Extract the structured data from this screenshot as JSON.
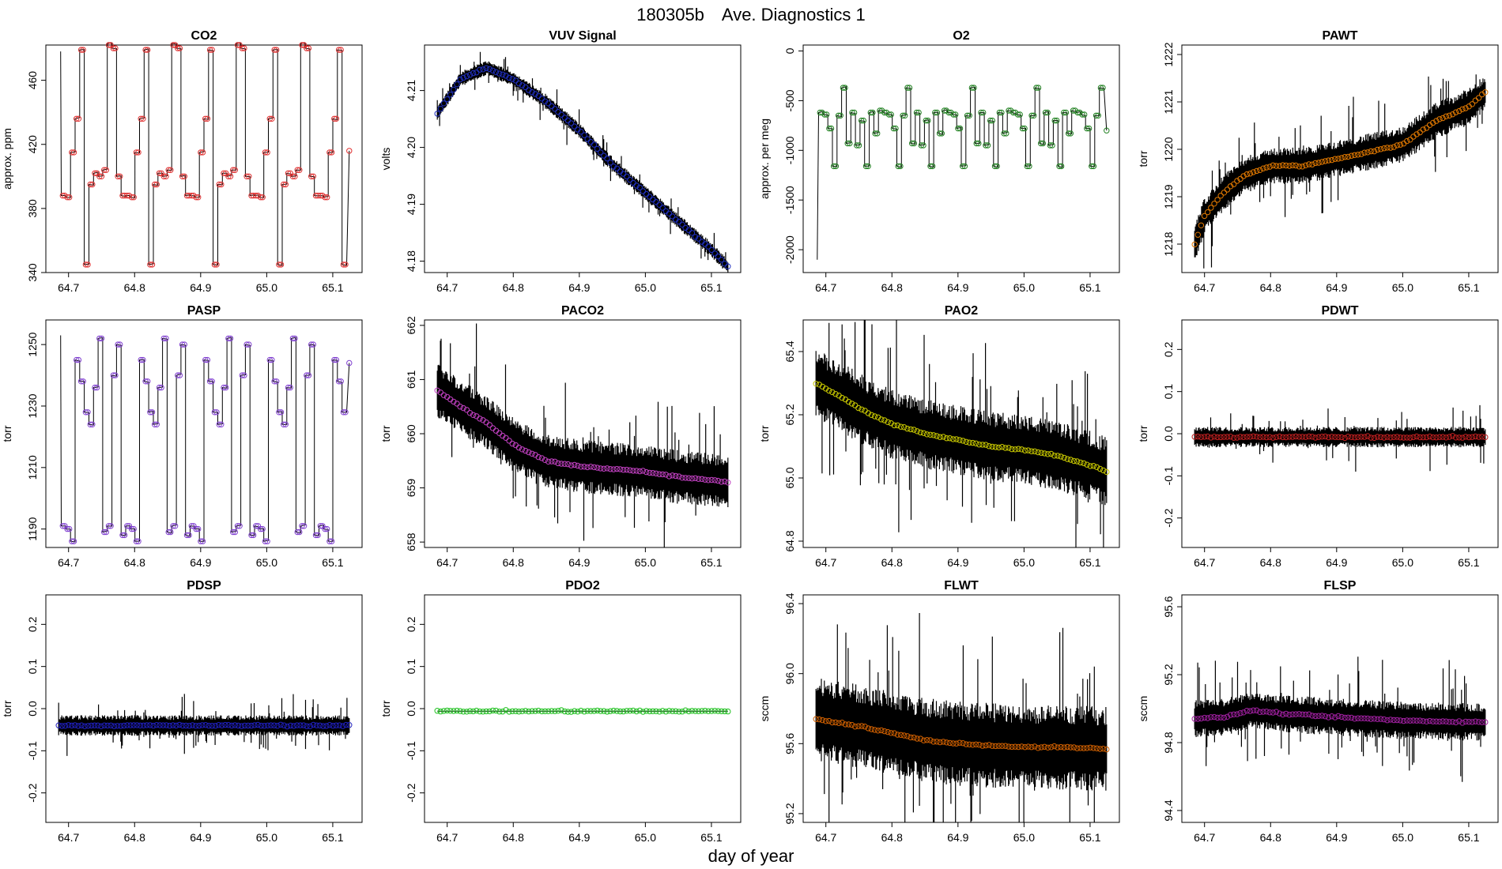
{
  "figure": {
    "title_id": "180305b",
    "title_text": "Ave. Diagnostics 1",
    "xlabel": "day of year",
    "x_range": [
      64.68,
      65.13
    ],
    "x_ticks": [
      "64.7",
      "64.8",
      "64.9",
      "65.0",
      "65.1"
    ]
  },
  "chart_data": [
    {
      "type": "line",
      "title": "CO2",
      "ylabel": "approx. ppm",
      "ylim": [
        340,
        482
      ],
      "y_ticks": [
        {
          "v": 340,
          "label": "340"
        },
        {
          "v": 380,
          "label": "380"
        },
        {
          "v": 420,
          "label": "420"
        },
        {
          "v": 460,
          "label": "460"
        }
      ],
      "color": "#e03030",
      "kind": "steps",
      "pattern": [
        388,
        387,
        415,
        436,
        479,
        345,
        395,
        402,
        400,
        404,
        483,
        480,
        400,
        388
      ],
      "start": {
        "x": 64.688,
        "y": 478
      },
      "end": {
        "x": 65.125,
        "y": 416
      }
    },
    {
      "type": "line",
      "title": "VUV Signal",
      "ylabel": "volts",
      "ylim": [
        4.178,
        4.218
      ],
      "y_ticks": [
        {
          "v": 4.18,
          "label": "4.18"
        },
        {
          "v": 4.19,
          "label": "4.19"
        },
        {
          "v": 4.2,
          "label": "4.20"
        },
        {
          "v": 4.21,
          "label": "4.21"
        }
      ],
      "color": "#2030c0",
      "kind": "curve",
      "curve": [
        [
          64.685,
          4.206
        ],
        [
          64.72,
          4.212
        ],
        [
          64.76,
          4.214
        ],
        [
          64.8,
          4.212
        ],
        [
          64.85,
          4.208
        ],
        [
          64.9,
          4.203
        ],
        [
          64.95,
          4.197
        ],
        [
          65.0,
          4.192
        ],
        [
          65.05,
          4.187
        ],
        [
          65.1,
          4.182
        ],
        [
          65.125,
          4.179
        ]
      ],
      "noise": 0.0012
    },
    {
      "type": "line",
      "title": "O2",
      "ylabel": "approx. per meg",
      "ylim": [
        -2230,
        60
      ],
      "y_ticks": [
        {
          "v": 0,
          "label": "0"
        },
        {
          "v": -500,
          "label": "-500"
        },
        {
          "v": -1000,
          "label": "-1000"
        },
        {
          "v": -1500,
          "label": "-1500"
        },
        {
          "v": -2000,
          "label": "-2000"
        }
      ],
      "color": "#208020",
      "kind": "steps",
      "pattern": [
        -620,
        -640,
        -780,
        -1160,
        -650,
        -370,
        -930,
        -620,
        -950,
        -700,
        -1160,
        -620,
        -830,
        -600
      ],
      "start": {
        "x": 64.687,
        "y": -2100
      },
      "end": {
        "x": 65.125,
        "y": -800
      }
    },
    {
      "type": "line",
      "title": "PAWT",
      "ylabel": "torr",
      "ylim": [
        1217.4,
        1222.2
      ],
      "y_ticks": [
        {
          "v": 1218,
          "label": "1218"
        },
        {
          "v": 1219,
          "label": "1219"
        },
        {
          "v": 1220,
          "label": "1220"
        },
        {
          "v": 1221,
          "label": "1221"
        },
        {
          "v": 1222,
          "label": "1222"
        }
      ],
      "color": "#e07800",
      "kind": "curve",
      "curve": [
        [
          64.685,
          1218.0
        ],
        [
          64.7,
          1218.6
        ],
        [
          64.73,
          1219.1
        ],
        [
          64.76,
          1219.45
        ],
        [
          64.8,
          1219.65
        ],
        [
          64.85,
          1219.65
        ],
        [
          64.9,
          1219.8
        ],
        [
          64.95,
          1219.95
        ],
        [
          65.0,
          1220.1
        ],
        [
          65.05,
          1220.6
        ],
        [
          65.1,
          1220.9
        ],
        [
          65.125,
          1221.2
        ]
      ],
      "noise": 0.35
    },
    {
      "type": "line",
      "title": "PASP",
      "ylabel": "torr",
      "ylim": [
        1184,
        1258
      ],
      "y_ticks": [
        {
          "v": 1190,
          "label": "1190"
        },
        {
          "v": 1210,
          "label": "1210"
        },
        {
          "v": 1230,
          "label": "1230"
        },
        {
          "v": 1250,
          "label": "1250"
        }
      ],
      "color": "#8040d0",
      "kind": "steps",
      "pattern": [
        1191,
        1190,
        1186,
        1245,
        1238,
        1228,
        1224,
        1236,
        1252,
        1189,
        1191,
        1240,
        1250,
        1188
      ],
      "start": {
        "x": 64.688,
        "y": 1253
      },
      "end": {
        "x": 65.125,
        "y": 1244
      }
    },
    {
      "type": "line",
      "title": "PACO2",
      "ylabel": "torr",
      "ylim": [
        657.9,
        662.1
      ],
      "y_ticks": [
        {
          "v": 658,
          "label": "658"
        },
        {
          "v": 659,
          "label": "659"
        },
        {
          "v": 660,
          "label": "660"
        },
        {
          "v": 661,
          "label": "661"
        },
        {
          "v": 662,
          "label": "662"
        }
      ],
      "color": "#c040c0",
      "kind": "curve",
      "curve": [
        [
          64.685,
          660.8
        ],
        [
          64.72,
          660.5
        ],
        [
          64.76,
          660.2
        ],
        [
          64.8,
          659.8
        ],
        [
          64.85,
          659.5
        ],
        [
          64.9,
          659.4
        ],
        [
          64.95,
          659.35
        ],
        [
          65.0,
          659.3
        ],
        [
          65.05,
          659.2
        ],
        [
          65.1,
          659.15
        ],
        [
          65.125,
          659.1
        ]
      ],
      "noise": 0.45
    },
    {
      "type": "line",
      "title": "PAO2",
      "ylabel": "torr",
      "ylim": [
        64.78,
        65.5
      ],
      "y_ticks": [
        {
          "v": 64.8,
          "label": "64.8"
        },
        {
          "v": 65.0,
          "label": "65.0"
        },
        {
          "v": 65.2,
          "label": "65.2"
        },
        {
          "v": 65.4,
          "label": "65.4"
        }
      ],
      "color": "#c8c800",
      "kind": "curve",
      "curve": [
        [
          64.685,
          65.3
        ],
        [
          64.72,
          65.26
        ],
        [
          64.76,
          65.21
        ],
        [
          64.8,
          65.17
        ],
        [
          64.85,
          65.14
        ],
        [
          64.9,
          65.12
        ],
        [
          64.95,
          65.1
        ],
        [
          65.0,
          65.09
        ],
        [
          65.05,
          65.07
        ],
        [
          65.1,
          65.04
        ],
        [
          65.125,
          65.02
        ]
      ],
      "noise": 0.1
    },
    {
      "type": "line",
      "title": "PDWT",
      "ylabel": "torr",
      "ylim": [
        -0.27,
        0.27
      ],
      "y_ticks": [
        {
          "v": -0.2,
          "label": "-0.2"
        },
        {
          "v": -0.1,
          "label": "-0.1"
        },
        {
          "v": 0.0,
          "label": "0.0"
        },
        {
          "v": 0.1,
          "label": "0.1"
        },
        {
          "v": 0.2,
          "label": "0.2"
        }
      ],
      "color": "#c02020",
      "kind": "curve",
      "curve": [
        [
          64.685,
          -0.008
        ],
        [
          65.125,
          -0.008
        ]
      ],
      "noise": 0.022
    },
    {
      "type": "line",
      "title": "PDSP",
      "ylabel": "torr",
      "ylim": [
        -0.27,
        0.27
      ],
      "y_ticks": [
        {
          "v": -0.2,
          "label": "-0.2"
        },
        {
          "v": -0.1,
          "label": "-0.1"
        },
        {
          "v": 0.0,
          "label": "0.0"
        },
        {
          "v": 0.1,
          "label": "0.1"
        },
        {
          "v": 0.2,
          "label": "0.2"
        }
      ],
      "color": "#2020c0",
      "kind": "curve",
      "curve": [
        [
          64.685,
          -0.04
        ],
        [
          65.125,
          -0.04
        ]
      ],
      "noise": 0.022
    },
    {
      "type": "line",
      "title": "PDO2",
      "ylabel": "torr",
      "ylim": [
        -0.27,
        0.27
      ],
      "y_ticks": [
        {
          "v": -0.2,
          "label": "-0.2"
        },
        {
          "v": -0.1,
          "label": "-0.1"
        },
        {
          "v": 0.0,
          "label": "0.0"
        },
        {
          "v": 0.1,
          "label": "0.1"
        },
        {
          "v": 0.2,
          "label": "0.2"
        }
      ],
      "color": "#20c020",
      "kind": "curve",
      "curve": [
        [
          64.685,
          -0.006
        ],
        [
          65.125,
          -0.006
        ]
      ],
      "noise": 0.0
    },
    {
      "type": "line",
      "title": "FLWT",
      "ylabel": "sccm",
      "ylim": [
        95.15,
        96.45
      ],
      "y_ticks": [
        {
          "v": 95.2,
          "label": "95.2"
        },
        {
          "v": 95.6,
          "label": "95.6"
        },
        {
          "v": 96.0,
          "label": "96.0"
        },
        {
          "v": 96.4,
          "label": "96.4"
        }
      ],
      "color": "#d06000",
      "kind": "curve",
      "curve": [
        [
          64.685,
          95.74
        ],
        [
          64.75,
          95.7
        ],
        [
          64.8,
          95.66
        ],
        [
          64.85,
          95.62
        ],
        [
          64.9,
          95.6
        ],
        [
          65.0,
          95.58
        ],
        [
          65.05,
          95.58
        ],
        [
          65.125,
          95.57
        ]
      ],
      "noise": 0.22
    },
    {
      "type": "line",
      "title": "FLSP",
      "ylabel": "sccm",
      "ylim": [
        94.33,
        95.67
      ],
      "y_ticks": [
        {
          "v": 94.4,
          "label": "94.4"
        },
        {
          "v": 94.8,
          "label": "94.8"
        },
        {
          "v": 95.2,
          "label": "95.2"
        },
        {
          "v": 95.6,
          "label": "95.6"
        }
      ],
      "color": "#a020a0",
      "kind": "curve",
      "curve": [
        [
          64.685,
          94.94
        ],
        [
          64.73,
          94.95
        ],
        [
          64.77,
          94.99
        ],
        [
          64.82,
          94.97
        ],
        [
          64.9,
          94.95
        ],
        [
          65.0,
          94.93
        ],
        [
          65.125,
          94.92
        ]
      ],
      "noise": 0.1
    }
  ]
}
